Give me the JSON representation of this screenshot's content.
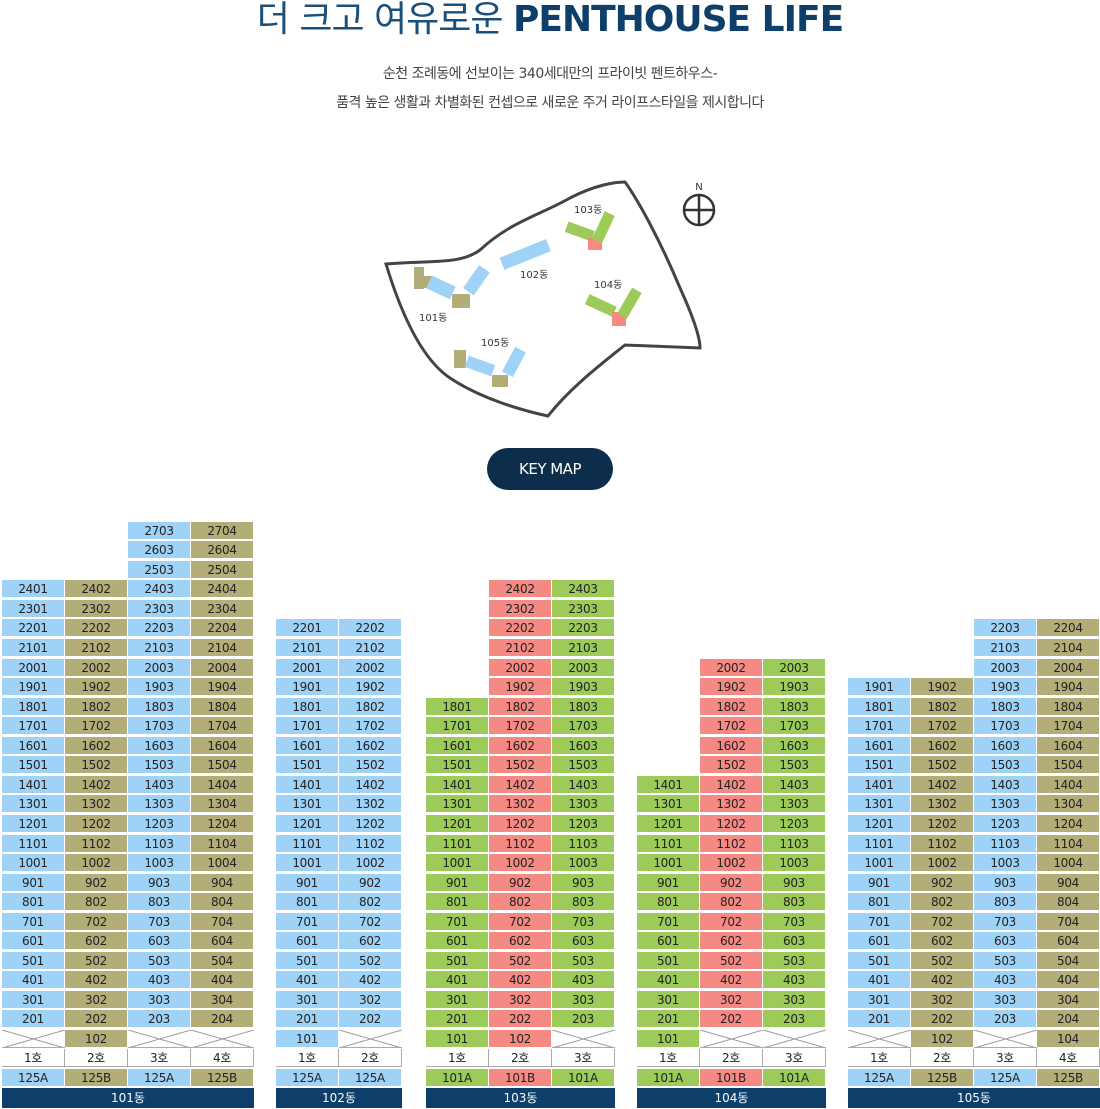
{
  "header": {
    "title_light": "더 크고 여유로운",
    "title_bold": "PENTHOUSE LIFE",
    "subtitle_line1": "순천 조례동에 선보이는 340세대만의 프라이빗 펜트하우스-",
    "subtitle_line2": "품격 높은 생활과 차별화된 컨셉으로 새로운 주거 라이프스타일을 제시합니다"
  },
  "site_map": {
    "north_label": "N",
    "building_labels": [
      "101동",
      "102동",
      "103동",
      "104동",
      "105동"
    ]
  },
  "key_map_button": "KEY MAP",
  "colors": {
    "blue": "#9ed2f7",
    "olive": "#b3ae78",
    "green": "#9ccb5a",
    "red": "#f58a84",
    "navy": "#0d3f6a"
  },
  "buildings": [
    {
      "name": "101동",
      "columns": [
        {
          "ho": "1호",
          "type": "125A",
          "color": "blue",
          "lowest": 201,
          "top": 24
        },
        {
          "ho": "2호",
          "type": "125B",
          "color": "olive",
          "lowest": 102,
          "top": 24
        },
        {
          "ho": "3호",
          "type": "125A",
          "color": "blue",
          "lowest": 203,
          "top": 27
        },
        {
          "ho": "4호",
          "type": "125B",
          "color": "olive",
          "lowest": 204,
          "top": 27
        }
      ]
    },
    {
      "name": "102동",
      "columns": [
        {
          "ho": "1호",
          "type": "125A",
          "color": "blue",
          "lowest": 101,
          "top": 22
        },
        {
          "ho": "2호",
          "type": "125A",
          "color": "blue",
          "lowest": 202,
          "top": 22
        }
      ]
    },
    {
      "name": "103동",
      "columns": [
        {
          "ho": "1호",
          "type": "101A",
          "color": "green",
          "lowest": 101,
          "top": 18
        },
        {
          "ho": "2호",
          "type": "101B",
          "color": "red",
          "lowest": 102,
          "top": 24
        },
        {
          "ho": "3호",
          "type": "101A",
          "color": "green",
          "lowest": 203,
          "top": 24
        }
      ]
    },
    {
      "name": "104동",
      "columns": [
        {
          "ho": "1호",
          "type": "101A",
          "color": "green",
          "lowest": 101,
          "top": 14
        },
        {
          "ho": "2호",
          "type": "101B",
          "color": "red",
          "lowest": 202,
          "top": 20
        },
        {
          "ho": "3호",
          "type": "101A",
          "color": "green",
          "lowest": 203,
          "top": 20
        }
      ]
    },
    {
      "name": "105동",
      "columns": [
        {
          "ho": "1호",
          "type": "125A",
          "color": "blue",
          "lowest": 201,
          "top": 19
        },
        {
          "ho": "2호",
          "type": "125B",
          "color": "olive",
          "lowest": 102,
          "top": 19
        },
        {
          "ho": "3호",
          "type": "125A",
          "color": "blue",
          "lowest": 203,
          "top": 22
        },
        {
          "ho": "4호",
          "type": "125B",
          "color": "olive",
          "lowest": 104,
          "top": 22
        }
      ]
    }
  ]
}
